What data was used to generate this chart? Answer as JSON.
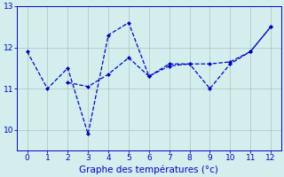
{
  "line1_x": [
    0,
    1,
    2,
    3,
    4,
    5,
    6,
    7,
    8,
    9,
    10,
    11,
    12
  ],
  "line1_y": [
    11.9,
    11.0,
    11.5,
    9.9,
    12.3,
    12.6,
    11.3,
    11.6,
    11.6,
    11.0,
    11.6,
    11.9,
    12.5
  ],
  "line2_x": [
    2,
    3,
    4,
    5,
    6,
    7,
    8,
    9,
    10,
    11,
    12
  ],
  "line2_y": [
    11.15,
    11.05,
    11.35,
    11.75,
    11.3,
    11.55,
    11.6,
    11.6,
    11.65,
    11.9,
    12.5
  ],
  "line_color": "#0000cc",
  "bg_color": "#d4eeee",
  "grid_color": "#b0c8c8",
  "xlabel": "Graphe des températures (°c)",
  "xlim": [
    -0.5,
    12.5
  ],
  "ylim": [
    9.5,
    12.9
  ],
  "yticks": [
    10,
    11,
    12,
    13
  ],
  "xticks": [
    0,
    1,
    2,
    3,
    4,
    5,
    6,
    7,
    8,
    9,
    10,
    11,
    12
  ],
  "tick_labelsize": 6.5,
  "xlabel_fontsize": 7.5
}
